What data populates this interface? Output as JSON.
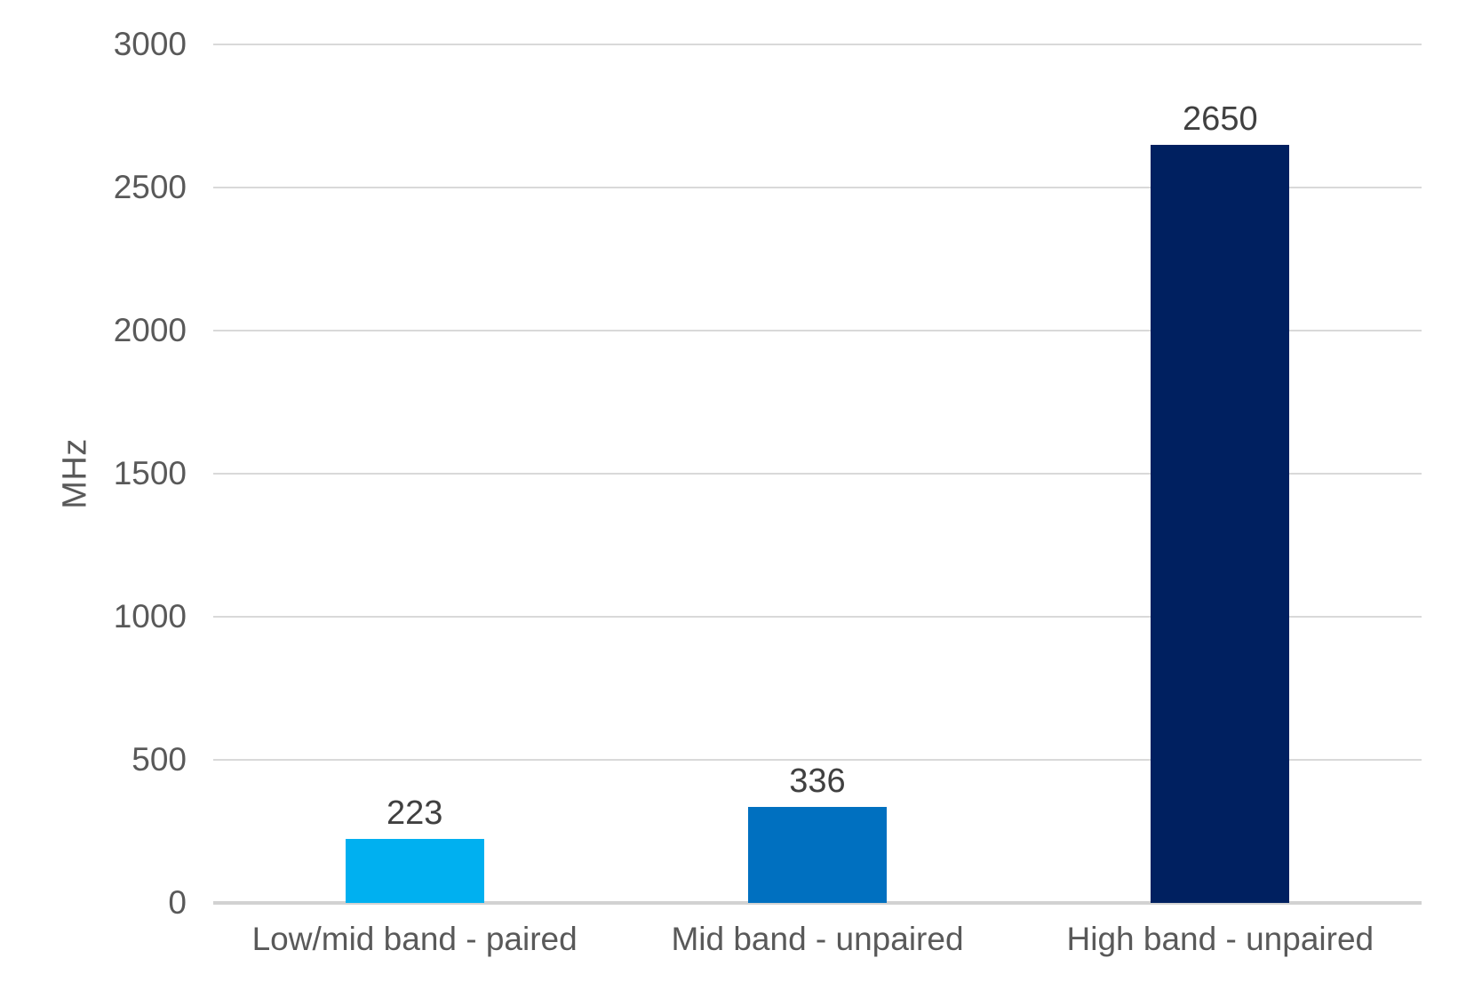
{
  "chart_data": {
    "type": "bar",
    "title": "",
    "xlabel": "",
    "ylabel": "MHz",
    "categories": [
      "Low/mid band - paired",
      "Mid band - unpaired",
      "High band - unpaired"
    ],
    "values": [
      223,
      336,
      2650
    ],
    "data_labels": [
      "223",
      "336",
      "2650"
    ],
    "bar_colors": [
      "#00B0F0",
      "#0070C0",
      "#002060"
    ],
    "ylim": [
      0,
      3000
    ],
    "yticks": [
      0,
      500,
      1000,
      1500,
      2000,
      2500,
      3000
    ],
    "grid": "horizontal",
    "legend_position": "none",
    "gridline_color": "#D9D9D9",
    "baseline_color": "#D2D2D2",
    "axis_text_color": "#595959",
    "value_label_color": "#404040",
    "background_color": "#FFFFFF"
  }
}
